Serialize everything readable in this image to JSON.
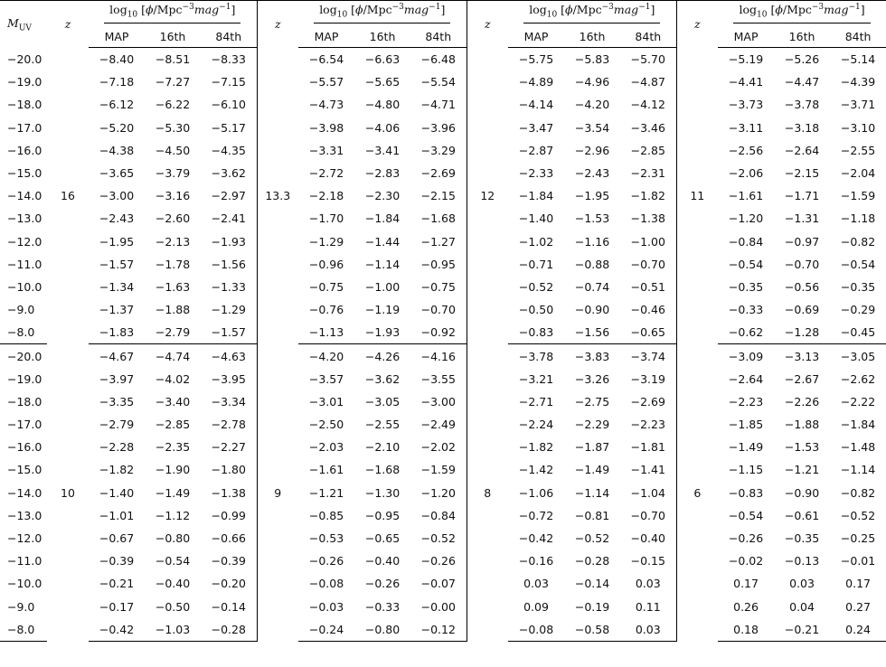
{
  "table": {
    "row_label_header": "M",
    "row_label_sub": "UV",
    "z_header": "z",
    "phi_header": {
      "log": "log",
      "log_sub": "10",
      "open": " [",
      "phi": "ϕ",
      "unit": "/Mpc",
      "exp": "−3",
      "mag": "mag",
      "mag_exp": "−1",
      "close": "]"
    },
    "col_labels": [
      "MAP",
      "16th",
      "84th"
    ],
    "muv": [
      "−20.0",
      "−19.0",
      "−18.0",
      "−17.0",
      "−16.0",
      "−15.0",
      "−14.0",
      "−13.0",
      "−12.0",
      "−11.0",
      "−10.0",
      "−9.0",
      "−8.0"
    ],
    "blocks": [
      {
        "groups": [
          {
            "z": "16",
            "rows": [
              [
                "−8.40",
                "−8.51",
                "−8.33"
              ],
              [
                "−7.18",
                "−7.27",
                "−7.15"
              ],
              [
                "−6.12",
                "−6.22",
                "−6.10"
              ],
              [
                "−5.20",
                "−5.30",
                "−5.17"
              ],
              [
                "−4.38",
                "−4.50",
                "−4.35"
              ],
              [
                "−3.65",
                "−3.79",
                "−3.62"
              ],
              [
                "−3.00",
                "−3.16",
                "−2.97"
              ],
              [
                "−2.43",
                "−2.60",
                "−2.41"
              ],
              [
                "−1.95",
                "−2.13",
                "−1.93"
              ],
              [
                "−1.57",
                "−1.78",
                "−1.56"
              ],
              [
                "−1.34",
                "−1.63",
                "−1.33"
              ],
              [
                "−1.37",
                "−1.88",
                "−1.29"
              ],
              [
                "−1.83",
                "−2.79",
                "−1.57"
              ]
            ]
          },
          {
            "z": "13.3",
            "rows": [
              [
                "−6.54",
                "−6.63",
                "−6.48"
              ],
              [
                "−5.57",
                "−5.65",
                "−5.54"
              ],
              [
                "−4.73",
                "−4.80",
                "−4.71"
              ],
              [
                "−3.98",
                "−4.06",
                "−3.96"
              ],
              [
                "−3.31",
                "−3.41",
                "−3.29"
              ],
              [
                "−2.72",
                "−2.83",
                "−2.69"
              ],
              [
                "−2.18",
                "−2.30",
                "−2.15"
              ],
              [
                "−1.70",
                "−1.84",
                "−1.68"
              ],
              [
                "−1.29",
                "−1.44",
                "−1.27"
              ],
              [
                "−0.96",
                "−1.14",
                "−0.95"
              ],
              [
                "−0.75",
                "−1.00",
                "−0.75"
              ],
              [
                "−0.76",
                "−1.19",
                "−0.70"
              ],
              [
                "−1.13",
                "−1.93",
                "−0.92"
              ]
            ]
          },
          {
            "z": "12",
            "rows": [
              [
                "−5.75",
                "−5.83",
                "−5.70"
              ],
              [
                "−4.89",
                "−4.96",
                "−4.87"
              ],
              [
                "−4.14",
                "−4.20",
                "−4.12"
              ],
              [
                "−3.47",
                "−3.54",
                "−3.46"
              ],
              [
                "−2.87",
                "−2.96",
                "−2.85"
              ],
              [
                "−2.33",
                "−2.43",
                "−2.31"
              ],
              [
                "−1.84",
                "−1.95",
                "−1.82"
              ],
              [
                "−1.40",
                "−1.53",
                "−1.38"
              ],
              [
                "−1.02",
                "−1.16",
                "−1.00"
              ],
              [
                "−0.71",
                "−0.88",
                "−0.70"
              ],
              [
                "−0.52",
                "−0.74",
                "−0.51"
              ],
              [
                "−0.50",
                "−0.90",
                "−0.46"
              ],
              [
                "−0.83",
                "−1.56",
                "−0.65"
              ]
            ]
          },
          {
            "z": "11",
            "rows": [
              [
                "−5.19",
                "−5.26",
                "−5.14"
              ],
              [
                "−4.41",
                "−4.47",
                "−4.39"
              ],
              [
                "−3.73",
                "−3.78",
                "−3.71"
              ],
              [
                "−3.11",
                "−3.18",
                "−3.10"
              ],
              [
                "−2.56",
                "−2.64",
                "−2.55"
              ],
              [
                "−2.06",
                "−2.15",
                "−2.04"
              ],
              [
                "−1.61",
                "−1.71",
                "−1.59"
              ],
              [
                "−1.20",
                "−1.31",
                "−1.18"
              ],
              [
                "−0.84",
                "−0.97",
                "−0.82"
              ],
              [
                "−0.54",
                "−0.70",
                "−0.54"
              ],
              [
                "−0.35",
                "−0.56",
                "−0.35"
              ],
              [
                "−0.33",
                "−0.69",
                "−0.29"
              ],
              [
                "−0.62",
                "−1.28",
                "−0.45"
              ]
            ]
          }
        ]
      },
      {
        "groups": [
          {
            "z": "10",
            "rows": [
              [
                "−4.67",
                "−4.74",
                "−4.63"
              ],
              [
                "−3.97",
                "−4.02",
                "−3.95"
              ],
              [
                "−3.35",
                "−3.40",
                "−3.34"
              ],
              [
                "−2.79",
                "−2.85",
                "−2.78"
              ],
              [
                "−2.28",
                "−2.35",
                "−2.27"
              ],
              [
                "−1.82",
                "−1.90",
                "−1.80"
              ],
              [
                "−1.40",
                "−1.49",
                "−1.38"
              ],
              [
                "−1.01",
                "−1.12",
                "−0.99"
              ],
              [
                "−0.67",
                "−0.80",
                "−0.66"
              ],
              [
                "−0.39",
                "−0.54",
                "−0.39"
              ],
              [
                "−0.21",
                "−0.40",
                "−0.20"
              ],
              [
                "−0.17",
                "−0.50",
                "−0.14"
              ],
              [
                "−0.42",
                "−1.03",
                "−0.28"
              ]
            ]
          },
          {
            "z": "9",
            "rows": [
              [
                "−4.20",
                "−4.26",
                "−4.16"
              ],
              [
                "−3.57",
                "−3.62",
                "−3.55"
              ],
              [
                "−3.01",
                "−3.05",
                "−3.00"
              ],
              [
                "−2.50",
                "−2.55",
                "−2.49"
              ],
              [
                "−2.03",
                "−2.10",
                "−2.02"
              ],
              [
                "−1.61",
                "−1.68",
                "−1.59"
              ],
              [
                "−1.21",
                "−1.30",
                "−1.20"
              ],
              [
                "−0.85",
                "−0.95",
                "−0.84"
              ],
              [
                "−0.53",
                "−0.65",
                "−0.52"
              ],
              [
                "−0.26",
                "−0.40",
                "−0.26"
              ],
              [
                "−0.08",
                "−0.26",
                "−0.07"
              ],
              [
                "−0.03",
                "−0.33",
                "−0.00"
              ],
              [
                "−0.24",
                "−0.80",
                "−0.12"
              ]
            ]
          },
          {
            "z": "8",
            "rows": [
              [
                "−3.78",
                "−3.83",
                "−3.74"
              ],
              [
                "−3.21",
                "−3.26",
                "−3.19"
              ],
              [
                "−2.71",
                "−2.75",
                "−2.69"
              ],
              [
                "−2.24",
                "−2.29",
                "−2.23"
              ],
              [
                "−1.82",
                "−1.87",
                "−1.81"
              ],
              [
                "−1.42",
                "−1.49",
                "−1.41"
              ],
              [
                "−1.06",
                "−1.14",
                "−1.04"
              ],
              [
                "−0.72",
                "−0.81",
                "−0.70"
              ],
              [
                "−0.42",
                "−0.52",
                "−0.40"
              ],
              [
                "−0.16",
                "−0.28",
                "−0.15"
              ],
              [
                "0.03",
                "−0.14",
                "0.03"
              ],
              [
                "0.09",
                "−0.19",
                "0.11"
              ],
              [
                "−0.08",
                "−0.58",
                "0.03"
              ]
            ]
          },
          {
            "z": "6",
            "rows": [
              [
                "−3.09",
                "−3.13",
                "−3.05"
              ],
              [
                "−2.64",
                "−2.67",
                "−2.62"
              ],
              [
                "−2.23",
                "−2.26",
                "−2.22"
              ],
              [
                "−1.85",
                "−1.88",
                "−1.84"
              ],
              [
                "−1.49",
                "−1.53",
                "−1.48"
              ],
              [
                "−1.15",
                "−1.21",
                "−1.14"
              ],
              [
                "−0.83",
                "−0.90",
                "−0.82"
              ],
              [
                "−0.54",
                "−0.61",
                "−0.52"
              ],
              [
                "−0.26",
                "−0.35",
                "−0.25"
              ],
              [
                "−0.02",
                "−0.13",
                "−0.01"
              ],
              [
                "0.17",
                "0.03",
                "0.17"
              ],
              [
                "0.26",
                "0.04",
                "0.27"
              ],
              [
                "0.18",
                "−0.21",
                "0.24"
              ]
            ]
          }
        ]
      }
    ]
  }
}
